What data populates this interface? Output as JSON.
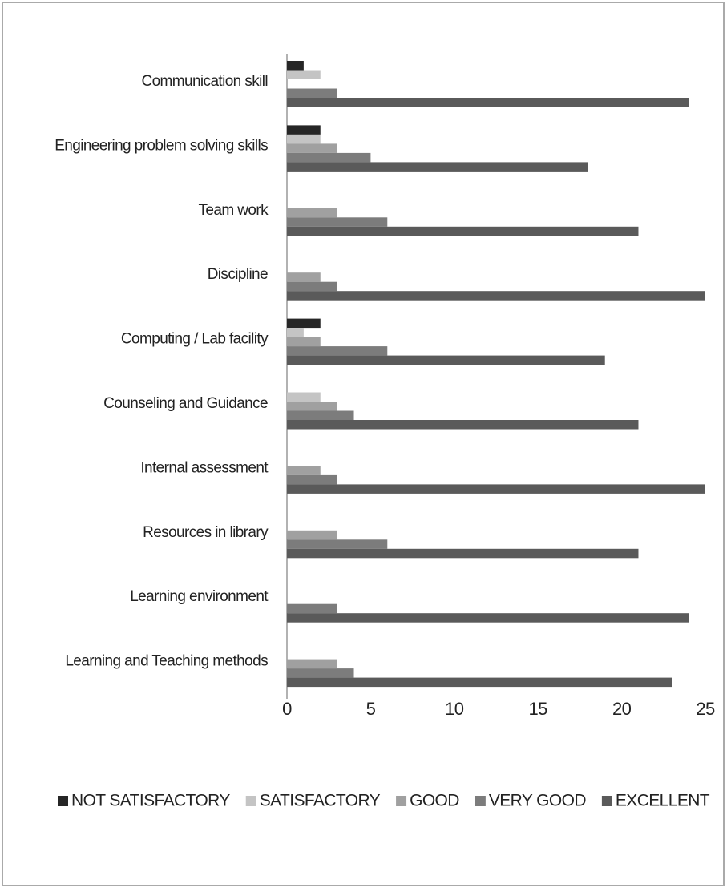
{
  "chart_data": {
    "type": "bar",
    "orientation": "horizontal",
    "categories": [
      "Communication skill",
      "Engineering problem solving skills",
      "Team work",
      "Discipline",
      "Computing / Lab facility",
      "Counseling and Guidance",
      "Internal assessment",
      "Resources in library",
      "Learning environment",
      "Learning and Teaching methods"
    ],
    "series": [
      {
        "name": "NOT SATISFACTORY",
        "color": "#262626",
        "values": [
          1,
          2,
          0,
          0,
          2,
          0,
          0,
          0,
          0,
          0
        ]
      },
      {
        "name": "SATISFACTORY",
        "color": "#c4c4c4",
        "values": [
          2,
          2,
          0,
          0,
          1,
          2,
          0,
          0,
          0,
          0
        ]
      },
      {
        "name": "GOOD",
        "color": "#a0a0a0",
        "values": [
          0,
          3,
          3,
          2,
          2,
          3,
          2,
          3,
          0,
          3
        ]
      },
      {
        "name": "VERY GOOD",
        "color": "#7c7c7c",
        "values": [
          3,
          5,
          6,
          3,
          6,
          4,
          3,
          6,
          3,
          4
        ]
      },
      {
        "name": "EXCELLENT",
        "color": "#5a5a5a",
        "values": [
          24,
          18,
          21,
          25,
          19,
          21,
          25,
          21,
          24,
          23
        ]
      }
    ],
    "xlim": [
      0,
      25
    ],
    "xticks": [
      0,
      5,
      10,
      15,
      20,
      25
    ],
    "grid": false,
    "legend": "bottom"
  }
}
